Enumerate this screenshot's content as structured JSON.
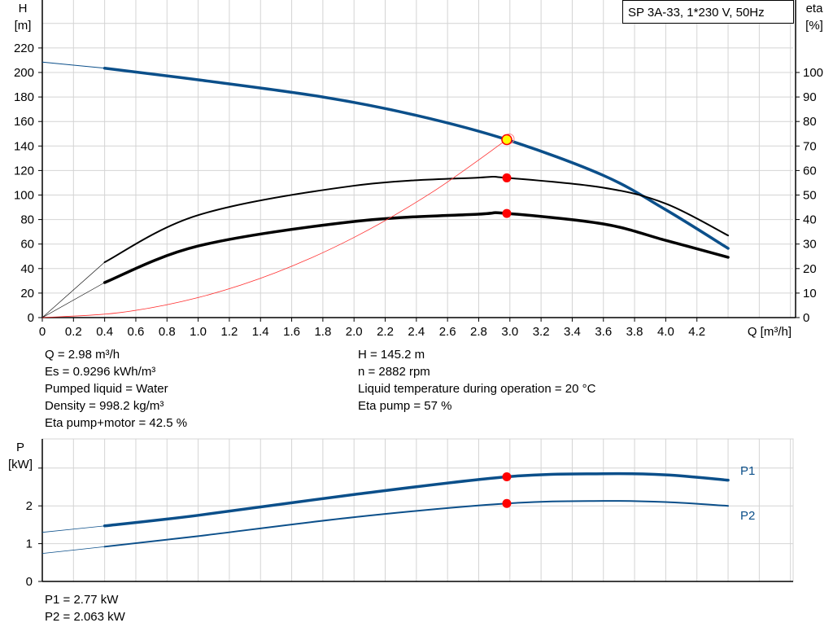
{
  "title": "SP 3A-33, 1*230 V, 50Hz",
  "colors": {
    "pump_curve": "#0b4f8a",
    "efficiency": "#000000",
    "system_curve": "#ff3030",
    "duty_point": "#ff0000",
    "duty_marker_fill": "#ffff00",
    "grid": "#d4d4d4"
  },
  "info_left": [
    "Q = 2.98 m³/h",
    "Es = 0.9296 kWh/m³",
    "Pumped liquid = Water",
    "Density = 998.2 kg/m³",
    "Eta pump+motor = 42.5 %"
  ],
  "info_right": [
    "H = 145.2 m",
    "n = 2882 rpm",
    "Liquid temperature during operation = 20 °C",
    "Eta pump = 57 %"
  ],
  "power_info": [
    "P1 = 2.77 kW",
    "P2 = 2.063 kW"
  ],
  "chart_data": [
    {
      "type": "line",
      "xlabel": "Q [m³/h]",
      "ylabel": "H\n[m]",
      "y2label": "eta\n[%]",
      "xlim": [
        0,
        4.8
      ],
      "ylim": [
        0,
        260
      ],
      "y2lim": [
        0,
        130
      ],
      "x_ticks": [
        "0",
        "0.2",
        "0.4",
        "0.6",
        "0.8",
        "1.0",
        "1.2",
        "1.4",
        "1.6",
        "1.8",
        "2.0",
        "2.2",
        "2.4",
        "2.6",
        "2.8",
        "3.0",
        "3.2",
        "3.4",
        "3.6",
        "3.8",
        "4.0",
        "4.2"
      ],
      "y_ticks": [
        "0",
        "20",
        "40",
        "60",
        "80",
        "100",
        "120",
        "140",
        "160",
        "180",
        "200",
        "220"
      ],
      "y2_ticks": [
        "0",
        "10",
        "20",
        "30",
        "40",
        "50",
        "60",
        "70",
        "80",
        "90",
        "100"
      ],
      "grid": true,
      "series": [
        {
          "axis": "H",
          "style": "pump",
          "x": [
            0,
            0.4,
            1.0,
            1.8,
            2.4,
            2.98,
            3.6,
            4.0,
            4.4
          ],
          "y": [
            208.5,
            203.5,
            194,
            180,
            165,
            145.2,
            116,
            88,
            56.5
          ]
        },
        {
          "axis": "eta",
          "style": "eta_pump",
          "x": [
            0,
            0.4,
            1.0,
            2.0,
            2.8,
            2.98,
            3.6,
            4.0,
            4.4
          ],
          "y": [
            0,
            22.6,
            41.8,
            53.8,
            57.1,
            57,
            53,
            46.5,
            33.5
          ]
        },
        {
          "axis": "eta",
          "style": "eta_total",
          "x": [
            0,
            0.4,
            1.0,
            2.0,
            2.8,
            2.98,
            3.6,
            4.0,
            4.4
          ],
          "y": [
            0,
            14.3,
            29.2,
            39.2,
            42.2,
            42.5,
            38.2,
            31.5,
            24.6
          ]
        },
        {
          "axis": "H",
          "style": "system",
          "x": [
            0,
            0.5,
            1.0,
            1.5,
            2.0,
            2.5,
            2.98
          ],
          "y": [
            0,
            4.1,
            16.35,
            36.8,
            65.4,
            102.2,
            145.2
          ]
        }
      ],
      "duty_point": {
        "Q": 2.98,
        "H": 145.2,
        "eta_pump": 57,
        "eta_total": 42.5
      }
    },
    {
      "type": "line",
      "ylabel": "P\n[kW]",
      "xlim": [
        0,
        4.8
      ],
      "ylim": [
        0,
        3.74
      ],
      "y_ticks": [
        "0",
        "1",
        "2"
      ],
      "grid": true,
      "series": [
        {
          "name": "P1",
          "x": [
            0,
            0.4,
            1.0,
            2.0,
            2.98,
            3.6,
            4.0,
            4.4
          ],
          "y": [
            1.3,
            1.47,
            1.75,
            2.3,
            2.77,
            2.85,
            2.82,
            2.68
          ]
        },
        {
          "name": "P2",
          "x": [
            0,
            0.4,
            1.0,
            2.0,
            2.98,
            3.6,
            4.0,
            4.4
          ],
          "y": [
            0.74,
            0.92,
            1.2,
            1.7,
            2.063,
            2.13,
            2.1,
            2.0
          ]
        }
      ],
      "duty_point": {
        "Q": 2.98,
        "P1": 2.77,
        "P2": 2.063
      }
    }
  ]
}
